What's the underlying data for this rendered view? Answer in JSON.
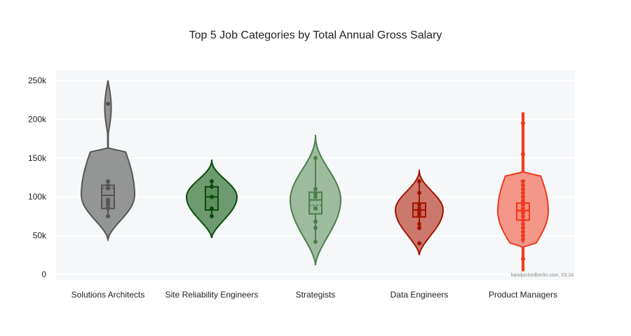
{
  "title": "Top 5 Job Categories by Total Annual Gross Salary",
  "credit": "handpickedberlin.com, 03.24",
  "chart_data": {
    "type": "violin",
    "title": "Top 5 Job Categories by Total Annual Gross Salary",
    "xlabel": "",
    "ylabel": "",
    "ylim": [
      0,
      250000
    ],
    "yticks": [
      0,
      50000,
      100000,
      150000,
      200000,
      250000
    ],
    "ytick_labels": [
      "0",
      "50k",
      "100k",
      "150k",
      "200k",
      "250k"
    ],
    "grid": true,
    "legend": "none",
    "categories": [
      "Solutions Architects",
      "Site Reliability Engineers",
      "Strategists",
      "Data Engineers",
      "Product Managers"
    ],
    "series": [
      {
        "name": "Solutions Architects",
        "color": "#555555",
        "fill": "#8a8a8a",
        "violin_range": [
          45000,
          250000
        ],
        "box": {
          "q1": 85000,
          "median": 102000,
          "q3": 115000,
          "mean": 111000,
          "whisker_low": 75000,
          "whisker_high": 120000
        },
        "points": [
          220000,
          120000,
          115000,
          111000,
          96000,
          93000,
          90000,
          86000,
          85000,
          75000
        ]
      },
      {
        "name": "Site Reliability Engineers",
        "color": "#0b4d0b",
        "fill": "#5e8f5e",
        "violin_range": [
          47000,
          148000
        ],
        "box": {
          "q1": 83000,
          "median": 100000,
          "q3": 113000,
          "mean": 100000,
          "whisker_low": 75000,
          "whisker_high": 120000
        },
        "points": [
          120000,
          113000,
          100000,
          85000,
          75000
        ]
      },
      {
        "name": "Strategists",
        "color": "#4a7f4a",
        "fill": "#93b593",
        "violin_range": [
          12000,
          180000
        ],
        "box": {
          "q1": 78000,
          "median": 96000,
          "q3": 106000,
          "mean": 89000,
          "whisker_low": 42000,
          "whisker_high": 150000
        },
        "points": [
          150000,
          110000,
          104000,
          100000,
          85000,
          68000,
          60000,
          42000
        ]
      },
      {
        "name": "Data Engineers",
        "color": "#a31500",
        "fill": "#c66a5c",
        "violin_range": [
          25000,
          135000
        ],
        "box": {
          "q1": 74000,
          "median": 83000,
          "q3": 92000,
          "mean": 83000,
          "whisker_low": 57000,
          "whisker_high": 120000
        },
        "points": [
          120000,
          105000,
          90000,
          85000,
          82000,
          79000,
          76000,
          65000,
          60000,
          40000
        ]
      },
      {
        "name": "Product Managers",
        "color": "#ee3a1f",
        "fill": "#f48c7c",
        "violin_range": [
          5000,
          208000
        ],
        "box": {
          "q1": 70000,
          "median": 82000,
          "q3": 92000,
          "mean": 83000,
          "whisker_low": 40000,
          "whisker_high": 120000
        },
        "points": [
          195000,
          155000,
          120000,
          115000,
          110000,
          105000,
          100000,
          95000,
          90000,
          85000,
          80000,
          75000,
          70000,
          65000,
          60000,
          55000,
          50000,
          45000,
          20000
        ]
      }
    ]
  }
}
